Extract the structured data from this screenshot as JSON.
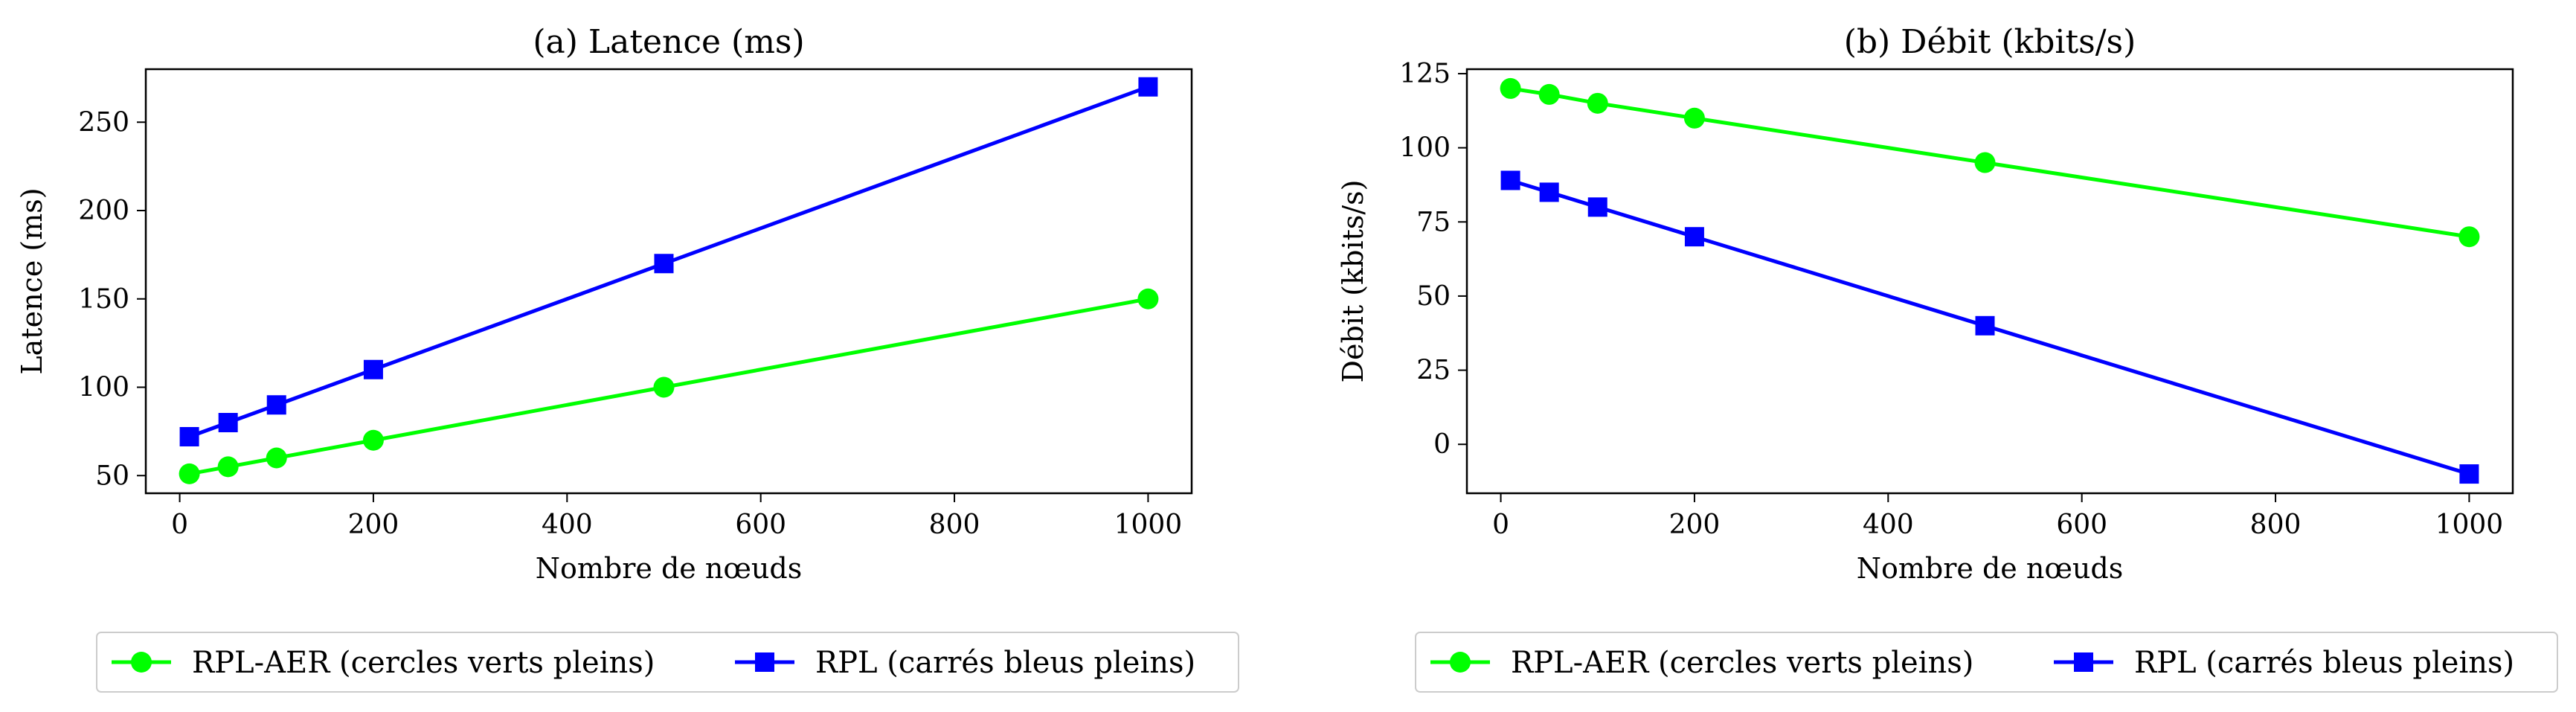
{
  "chart_data": [
    {
      "type": "line",
      "title": "(a) Latence (ms)",
      "xlabel": "Nombre de nœuds",
      "ylabel": "Latence (ms)",
      "x": [
        10,
        50,
        100,
        200,
        500,
        1000
      ],
      "xlim": [
        -35,
        1045
      ],
      "ylim": [
        40,
        280
      ],
      "xticks": [
        0,
        200,
        400,
        600,
        800,
        1000
      ],
      "yticks": [
        50,
        100,
        150,
        200,
        250
      ],
      "grid": false,
      "legend_position": "below",
      "series": [
        {
          "name": "RPL-AER (cercles verts pleins)",
          "marker": "circle",
          "color": "#00ff00",
          "values": [
            51,
            55,
            60,
            70,
            100,
            150
          ]
        },
        {
          "name": "RPL (carrés bleus pleins)",
          "marker": "square",
          "color": "#0000ff",
          "values": [
            72,
            80,
            90,
            110,
            170,
            270
          ]
        }
      ]
    },
    {
      "type": "line",
      "title": "(b) Débit (kbits/s)",
      "xlabel": "Nombre de nœuds",
      "ylabel": "Débit (kbits/s)",
      "x": [
        10,
        50,
        100,
        200,
        500,
        1000
      ],
      "xlim": [
        -35,
        1045
      ],
      "ylim": [
        -16.5,
        126.5
      ],
      "xticks": [
        0,
        200,
        400,
        600,
        800,
        1000
      ],
      "yticks": [
        0,
        25,
        50,
        75,
        100,
        125
      ],
      "grid": false,
      "legend_position": "below",
      "series": [
        {
          "name": "RPL-AER (cercles verts pleins)",
          "marker": "circle",
          "color": "#00ff00",
          "values": [
            120,
            118,
            115,
            110,
            95,
            70
          ]
        },
        {
          "name": "RPL (carrés bleus pleins)",
          "marker": "square",
          "color": "#0000ff",
          "values": [
            89,
            85,
            80,
            70,
            40,
            -10
          ]
        }
      ]
    }
  ]
}
